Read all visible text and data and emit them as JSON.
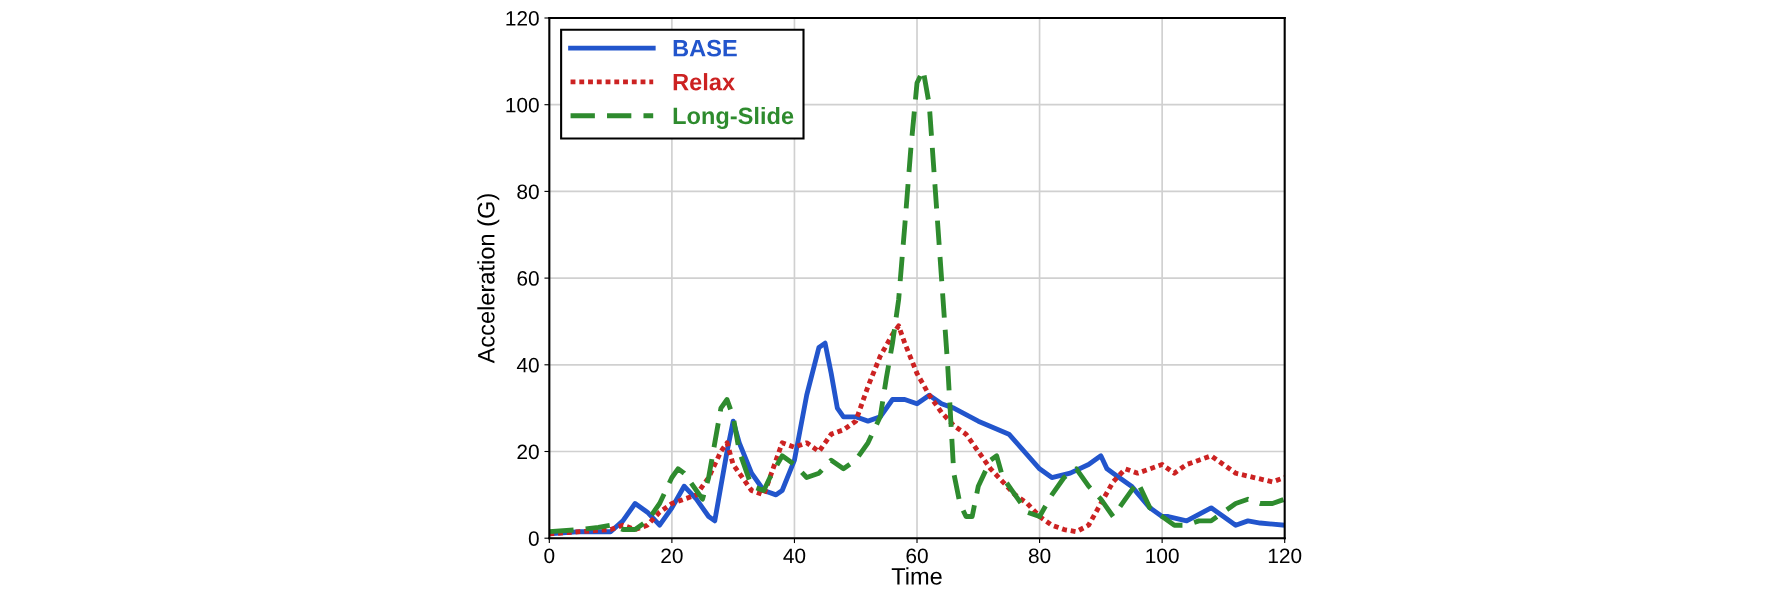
{
  "chart_data": {
    "type": "line",
    "xlabel": "Time",
    "ylabel": "Acceleration (G)",
    "xlim": [
      0,
      120
    ],
    "ylim": [
      0,
      120
    ],
    "xticks": [
      0,
      20,
      40,
      60,
      80,
      100,
      120
    ],
    "yticks": [
      0,
      20,
      40,
      60,
      80,
      100,
      120
    ],
    "grid": true,
    "legend": "top left",
    "series": [
      {
        "name": "BASE",
        "color": "#2255cc",
        "line_style": "solid",
        "x": [
          0,
          5,
          10,
          12,
          14,
          16,
          18,
          20,
          22,
          24,
          26,
          27,
          28,
          29,
          30,
          31,
          33,
          35,
          37,
          38,
          40,
          42,
          44,
          45,
          46,
          47,
          48,
          50,
          52,
          54,
          56,
          58,
          60,
          62,
          64,
          66,
          70,
          75,
          80,
          82,
          85,
          88,
          90,
          91,
          92,
          95,
          98,
          100,
          101,
          104,
          108,
          110,
          112,
          114,
          116,
          120
        ],
        "values": [
          1,
          1.5,
          1.5,
          4,
          8,
          6,
          3,
          7,
          12,
          9,
          5,
          4,
          12,
          20,
          27,
          22,
          15,
          11,
          10,
          11,
          18,
          33,
          44,
          45,
          38,
          30,
          28,
          28,
          27,
          28,
          32,
          32,
          31,
          33,
          31,
          30,
          27,
          24,
          16,
          14,
          15,
          17,
          19,
          16,
          15,
          12,
          7,
          5,
          5,
          4,
          7,
          5,
          3,
          4,
          3.5,
          3
        ]
      },
      {
        "name": "Relax",
        "color": "#cc2222",
        "line_style": "dotted",
        "x": [
          0,
          5,
          10,
          12,
          14,
          16,
          18,
          20,
          22,
          24,
          26,
          28,
          29,
          30,
          31,
          33,
          35,
          37,
          38,
          40,
          42,
          44,
          46,
          48,
          50,
          52,
          54,
          56,
          57,
          58,
          60,
          62,
          64,
          66,
          68,
          70,
          72,
          74,
          76,
          78,
          80,
          82,
          84,
          86,
          88,
          90,
          92,
          94,
          96,
          98,
          100,
          102,
          104,
          106,
          108,
          110,
          112,
          115,
          118,
          120
        ],
        "values": [
          1,
          1.5,
          2,
          3,
          2,
          3,
          6,
          8,
          9,
          10,
          14,
          20,
          22,
          17,
          15,
          11,
          10,
          18,
          22,
          21,
          22,
          20,
          24,
          25,
          27,
          35,
          42,
          47,
          49,
          45,
          38,
          33,
          29,
          26,
          24,
          20,
          16,
          13,
          10,
          8,
          5,
          3,
          2,
          1.5,
          3,
          8,
          13,
          16,
          15,
          16,
          17,
          15,
          17,
          18,
          19,
          17,
          15,
          14,
          13,
          14
        ]
      },
      {
        "name": "Long-Slide",
        "color": "#2e8b2e",
        "line_style": "dashed",
        "x": [
          0,
          5,
          8,
          10,
          12,
          14,
          16,
          18,
          20,
          21,
          22,
          24,
          25,
          26,
          28,
          29,
          30,
          31,
          33,
          35,
          36,
          38,
          40,
          42,
          44,
          46,
          48,
          50,
          52,
          54,
          55,
          56,
          57,
          58,
          59,
          60,
          61,
          62,
          63,
          64,
          65,
          66,
          67,
          68,
          69,
          70,
          72,
          73,
          74,
          76,
          78,
          80,
          82,
          84,
          86,
          88,
          90,
          92,
          94,
          96,
          98,
          100,
          102,
          104,
          106,
          108,
          110,
          112,
          114,
          116,
          118,
          120
        ],
        "values": [
          1.5,
          2,
          2.5,
          3,
          2,
          2,
          4,
          8,
          14,
          16,
          15,
          11,
          9,
          14,
          30,
          32,
          28,
          20,
          12,
          11,
          14,
          19,
          17,
          14,
          15,
          18,
          16,
          18,
          22,
          28,
          37,
          45,
          55,
          72,
          90,
          105,
          108,
          100,
          80,
          60,
          40,
          15,
          8,
          5,
          5,
          12,
          18,
          19,
          14,
          10,
          6,
          5,
          10,
          14,
          16,
          12,
          9,
          5,
          9,
          13,
          7,
          5,
          3,
          3,
          4,
          4,
          6,
          8,
          9,
          8,
          8,
          9
        ]
      }
    ]
  }
}
